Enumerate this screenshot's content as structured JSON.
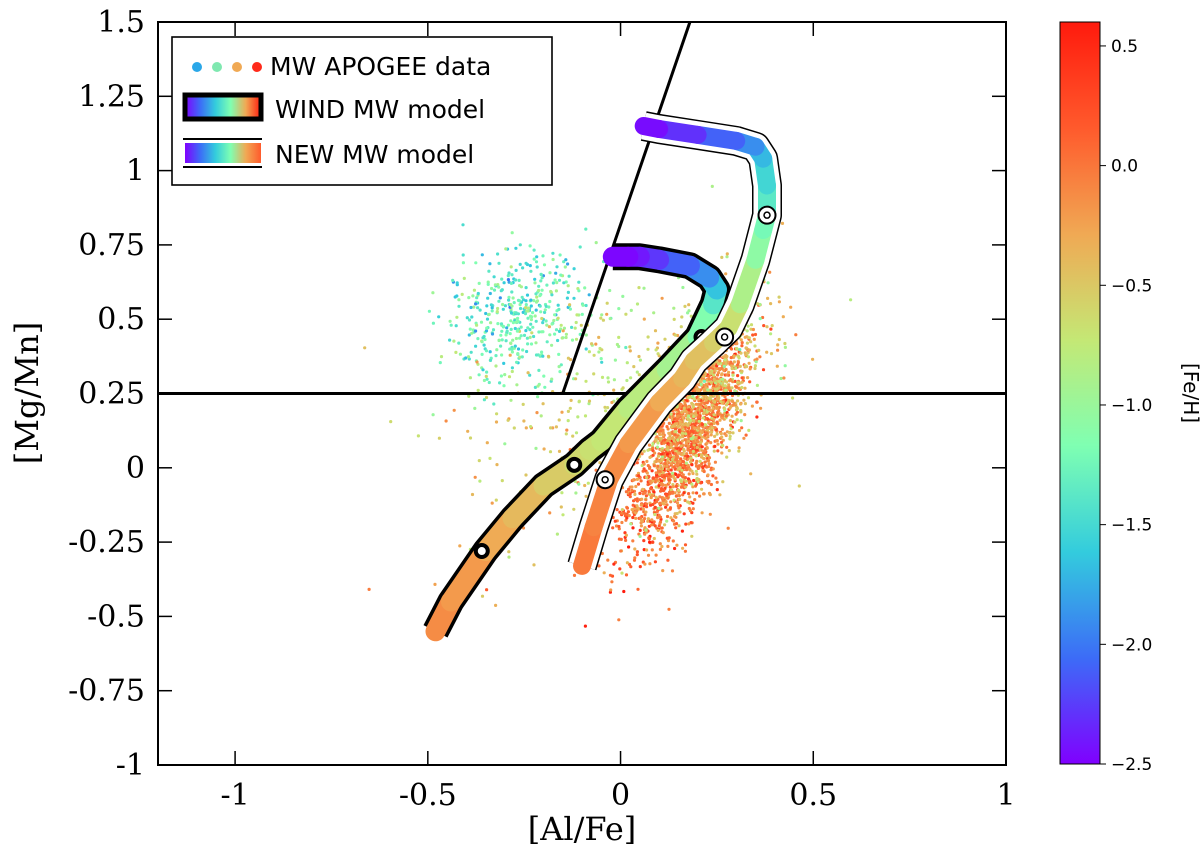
{
  "chart_data": {
    "type": "scatter",
    "xlabel": "[Al/Fe]",
    "ylabel": "[Mg/Mn]",
    "xlim": [
      -1.2,
      1.0
    ],
    "ylim": [
      -1.0,
      1.5
    ],
    "xticks": [
      -1,
      -0.5,
      0,
      0.5,
      1
    ],
    "xtick_labels": [
      "-1",
      "-0.5",
      "0",
      "0.5",
      "1"
    ],
    "yticks": [
      -1,
      -0.75,
      -0.5,
      -0.25,
      0,
      0.25,
      0.5,
      0.75,
      1,
      1.25,
      1.5
    ],
    "ytick_labels": [
      "-1",
      "-0.75",
      "-0.5",
      "-0.25",
      "0",
      "0.25",
      "0.5",
      "0.75",
      "1",
      "1.25",
      "1.5"
    ],
    "grid": false,
    "legend_position": "top-left",
    "legend": [
      {
        "label": "MW APOGEE data",
        "kind": "dots"
      },
      {
        "label": "WIND MW model",
        "kind": "black-outlined-band"
      },
      {
        "label": "NEW MW model",
        "kind": "white-outlined-band"
      }
    ],
    "colorbar": {
      "label": "[Fe/H]",
      "range": [
        -2.5,
        0.6
      ],
      "ticks": [
        0.5,
        0.0,
        -0.5,
        -1.0,
        -1.5,
        -2.0,
        -2.5
      ],
      "tick_labels": [
        "0.5",
        "0.0",
        "−0.5",
        "−1.0",
        "−1.5",
        "−2.0",
        "−2.5"
      ],
      "colormap": "rainbow",
      "colors": [
        "#8000ff",
        "#3c6cf7",
        "#33ccdd",
        "#7fffb2",
        "#c4e875",
        "#f0a954",
        "#ff5a2c",
        "#ff1a0d"
      ]
    },
    "reference_lines": [
      {
        "kind": "horizontal",
        "y": 0.25
      },
      {
        "kind": "line",
        "points": [
          [
            -0.15,
            0.25
          ],
          [
            0.18,
            1.5
          ]
        ]
      }
    ],
    "scatter_clouds": [
      {
        "name": "",
        "center": [
          0.17,
          0.12
        ],
        "spread": [
          0.14,
          0.27
        ],
        "tilt": 0.9,
        "n": 1700,
        "feh_mean": -0.05
      },
      {
        "name": "",
        "center": [
          0.2,
          0.2
        ],
        "spread": [
          0.17,
          0.3
        ],
        "tilt": 0.8,
        "n": 700,
        "feh_mean": -0.4
      },
      {
        "name": "",
        "center": [
          -0.27,
          0.52
        ],
        "spread": [
          0.17,
          0.2
        ],
        "tilt": 0.1,
        "n": 420,
        "feh_mean": -1.3
      },
      {
        "name": "",
        "center": [
          -0.05,
          0.2
        ],
        "spread": [
          0.33,
          0.42
        ],
        "tilt": 0.35,
        "n": 350,
        "feh_mean": -0.6
      }
    ],
    "series": [
      {
        "name": "WIND MW model",
        "x": [
          -0.48,
          -0.44,
          -0.35,
          -0.28,
          -0.2,
          -0.12,
          -0.08,
          -0.05,
          0.02,
          0.12,
          0.2,
          0.24,
          0.25,
          0.23,
          0.18,
          0.1,
          0.05,
          0.02,
          -0.02
        ],
        "y": [
          -0.55,
          -0.45,
          -0.28,
          -0.17,
          -0.06,
          0.01,
          0.06,
          0.09,
          0.2,
          0.33,
          0.44,
          0.55,
          0.6,
          0.64,
          0.68,
          0.7,
          0.71,
          0.71,
          0.71
        ],
        "feh": [
          -0.1,
          -0.15,
          -0.25,
          -0.35,
          -0.45,
          -0.6,
          -0.65,
          -0.7,
          -0.75,
          -0.85,
          -1.0,
          -1.3,
          -1.5,
          -1.8,
          -2.0,
          -2.2,
          -2.35,
          -2.45,
          -2.5
        ],
        "markers_x": [
          -0.36,
          -0.12,
          0.21
        ],
        "markers_y": [
          -0.28,
          0.01,
          0.44
        ]
      },
      {
        "name": "NEW MW model",
        "x": [
          -0.1,
          -0.07,
          -0.03,
          0.02,
          0.1,
          0.16,
          0.19,
          0.24,
          0.28,
          0.31,
          0.35,
          0.37,
          0.38,
          0.38,
          0.37,
          0.35,
          0.3,
          0.2,
          0.1,
          0.06
        ],
        "y": [
          -0.33,
          -0.2,
          -0.04,
          0.08,
          0.22,
          0.3,
          0.36,
          0.42,
          0.47,
          0.55,
          0.7,
          0.8,
          0.85,
          0.95,
          1.04,
          1.08,
          1.1,
          1.12,
          1.14,
          1.15
        ],
        "feh": [
          0.0,
          -0.05,
          -0.1,
          -0.15,
          -0.25,
          -0.35,
          -0.4,
          -0.5,
          -0.6,
          -0.75,
          -1.0,
          -1.15,
          -1.3,
          -1.45,
          -1.6,
          -1.8,
          -2.0,
          -2.2,
          -2.4,
          -2.5
        ],
        "markers_x": [
          -0.04,
          0.27,
          0.38
        ],
        "markers_y": [
          -0.04,
          0.44,
          0.85
        ]
      }
    ]
  }
}
